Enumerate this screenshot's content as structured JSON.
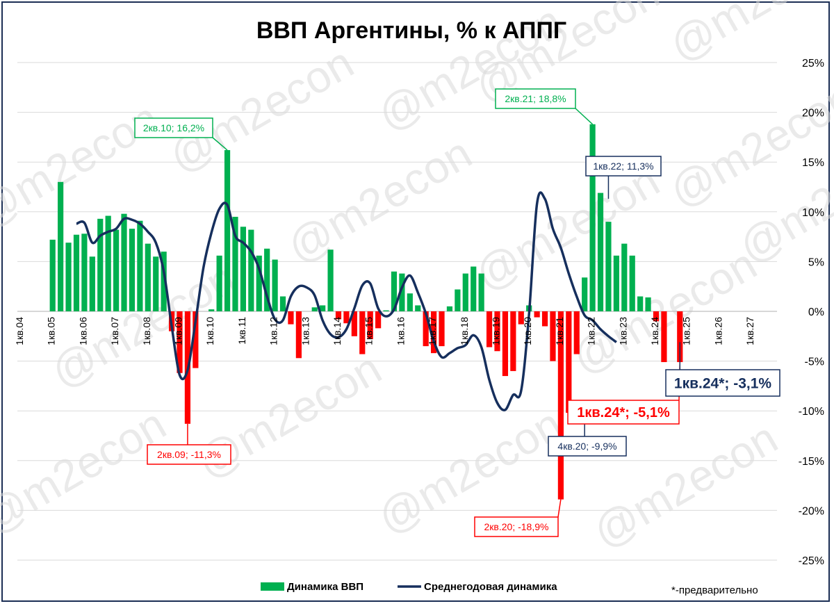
{
  "chart_data": {
    "type": "bar+line",
    "title": "ВВП Аргентины, % к АППГ",
    "ylim": [
      -25,
      25
    ],
    "yticks": [
      "25%",
      "20%",
      "15%",
      "10%",
      "5%",
      "0%",
      "-5%",
      "-10%",
      "-15%",
      "-20%",
      "-25%"
    ],
    "x_tick_labels": [
      "1кв.04",
      "1кв.05",
      "1кв.06",
      "1кв.07",
      "1кв.08",
      "1кв.09",
      "1кв.10",
      "1кв.11",
      "1кв.12",
      "1кв.13",
      "1кв.14",
      "1кв.15",
      "1кв.16",
      "1кв.17",
      "1кв.18",
      "1кв.19",
      "1кв.20",
      "1кв.21",
      "1кв.22",
      "1кв.23",
      "1кв.24",
      "1кв.25",
      "1кв.26",
      "1кв.27"
    ],
    "x_start_quarter": "1кв.04",
    "series": [
      {
        "name": "Динамика ВВП",
        "type": "bar",
        "color_positive": "#00b050",
        "color_negative": "#ff0000",
        "values": [
          null,
          null,
          null,
          null,
          7.2,
          13.0,
          6.9,
          7.7,
          7.8,
          5.5,
          9.3,
          9.6,
          8.2,
          9.8,
          8.3,
          9.1,
          6.8,
          5.5,
          6.0,
          -2.0,
          -6.2,
          -11.3,
          -5.7,
          null,
          0.2,
          5.6,
          16.2,
          9.5,
          8.5,
          8.2,
          5.6,
          6.3,
          5.2,
          1.5,
          -1.3,
          -4.7,
          null,
          0.4,
          0.6,
          6.2,
          -0.8,
          -1.2,
          -2.5,
          -4.3,
          -2.8,
          -1.7,
          0.1,
          4.0,
          3.8,
          1.8,
          0.6,
          -3.5,
          -4.2,
          -3.5,
          0.5,
          2.2,
          3.8,
          4.5,
          3.8,
          -3.6,
          -4.0,
          -6.5,
          -6.0,
          -1.3,
          0.6,
          -0.6,
          -1.5,
          -5.0,
          -18.9,
          -10.2,
          -4.3,
          3.4,
          18.8,
          11.9,
          9.0,
          5.6,
          6.8,
          5.6,
          1.5,
          1.4,
          -1.0,
          -5.1,
          null,
          -5.1
        ]
      },
      {
        "name": "Среднегодовая динамика",
        "type": "line",
        "color": "#162f5d",
        "values": [
          null,
          null,
          null,
          null,
          null,
          null,
          null,
          8.8,
          8.9,
          6.9,
          7.6,
          8.0,
          8.3,
          9.3,
          9.2,
          8.8,
          8.0,
          6.9,
          4.0,
          -1.5,
          -6.4,
          -5.9,
          -1.0,
          4.4,
          7.9,
          10.3,
          10.7,
          7.6,
          6.9,
          6.0,
          4.3,
          1.5,
          -0.8,
          -0.9,
          1.5,
          2.5,
          2.4,
          1.6,
          -0.9,
          -2.3,
          -2.6,
          -1.8,
          0.3,
          2.6,
          2.8,
          0.3,
          -0.5,
          0.2,
          2.4,
          3.6,
          1.9,
          -0.2,
          -3.0,
          -4.6,
          -4.2,
          -3.7,
          -3.4,
          -2.4,
          -3.6,
          -6.9,
          -9.2,
          -9.9,
          -8.4,
          -8.0,
          -0.3,
          10.8,
          11.3,
          8.3,
          6.4,
          3.8,
          1.5,
          -0.4,
          -0.9,
          -1.8,
          -2.5,
          -3.1
        ]
      }
    ],
    "annotations": [
      {
        "text": "2кв.10; 16,2%",
        "color": "#00b050"
      },
      {
        "text": "2кв.21; 18,8%",
        "color": "#00b050"
      },
      {
        "text": "1кв.22; 11,3%",
        "color": "#162f5d"
      },
      {
        "text": "2кв.09; -11,3%",
        "color": "#ff0000"
      },
      {
        "text": "2кв.20; -18,9%",
        "color": "#ff0000"
      },
      {
        "text": "4кв.20; -9,9%",
        "color": "#162f5d"
      },
      {
        "text": "1кв.24*; -5,1%",
        "color": "#ff0000"
      },
      {
        "text": "1кв.24*; -3,1%",
        "color": "#162f5d"
      }
    ],
    "legend": {
      "placement": "bottom",
      "items": [
        "Динамика ВВП",
        "Среднегодовая динамика"
      ]
    },
    "note": "*-предварительно",
    "watermark": "@m2econ",
    "grid": true
  }
}
